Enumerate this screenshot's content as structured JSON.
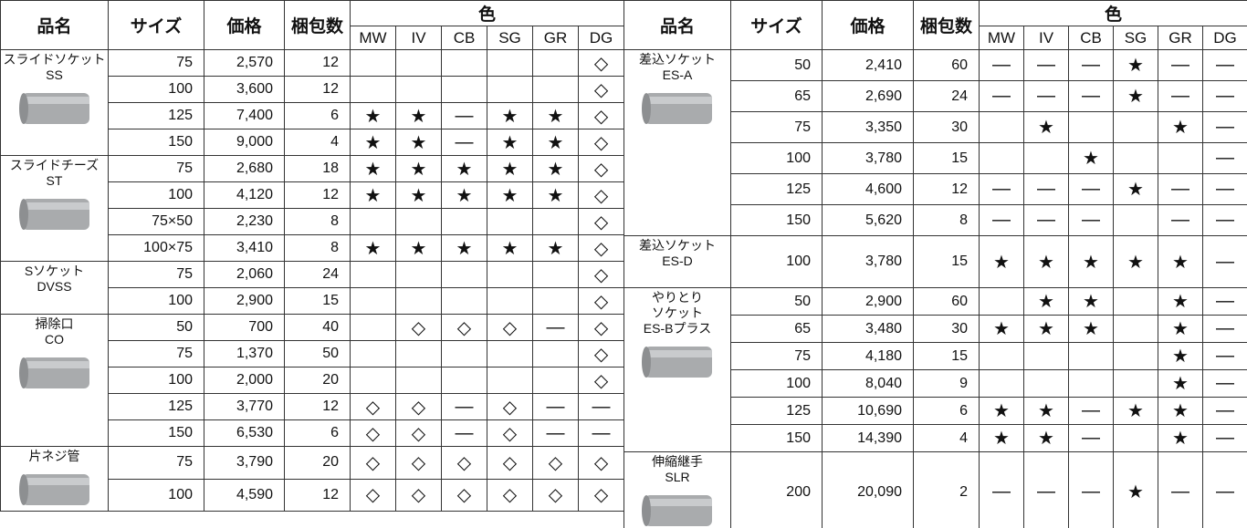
{
  "left_table": {
    "headers": {
      "name": "品名",
      "size": "サイズ",
      "price": "価格",
      "qty": "梱包数",
      "color": "色",
      "colors": [
        "MW",
        "IV",
        "CB",
        "SG",
        "GR",
        "DG"
      ]
    },
    "groups": [
      {
        "name_lines": [
          "スライドソケット",
          "SS"
        ],
        "rows": [
          {
            "size": "75",
            "price": "2,570",
            "qty": "12",
            "colors": [
              null,
              null,
              null,
              null,
              null,
              "◇"
            ]
          },
          {
            "size": "100",
            "price": "3,600",
            "qty": "12",
            "colors": [
              null,
              null,
              null,
              null,
              null,
              "◇"
            ]
          },
          {
            "size": "125",
            "price": "7,400",
            "qty": "6",
            "colors": [
              "★",
              "★",
              "—",
              "★",
              "★",
              "◇"
            ]
          },
          {
            "size": "150",
            "price": "9,000",
            "qty": "4",
            "colors": [
              "★",
              "★",
              "—",
              "★",
              "★",
              "◇"
            ]
          }
        ]
      },
      {
        "name_lines": [
          "スライドチーズ",
          "ST"
        ],
        "rows": [
          {
            "size": "75",
            "price": "2,680",
            "qty": "18",
            "colors": [
              "★",
              "★",
              "★",
              "★",
              "★",
              "◇"
            ]
          },
          {
            "size": "100",
            "price": "4,120",
            "qty": "12",
            "colors": [
              "★",
              "★",
              "★",
              "★",
              "★",
              "◇"
            ]
          },
          {
            "size": "75×50",
            "price": "2,230",
            "qty": "8",
            "colors": [
              null,
              null,
              null,
              null,
              null,
              "◇"
            ]
          },
          {
            "size": "100×75",
            "price": "3,410",
            "qty": "8",
            "colors": [
              "★",
              "★",
              "★",
              "★",
              "★",
              "◇"
            ]
          }
        ]
      },
      {
        "name_lines": [
          "Sソケット",
          "DVSS"
        ],
        "rows": [
          {
            "size": "75",
            "price": "2,060",
            "qty": "24",
            "colors": [
              null,
              null,
              null,
              null,
              null,
              "◇"
            ]
          },
          {
            "size": "100",
            "price": "2,900",
            "qty": "15",
            "colors": [
              null,
              null,
              null,
              null,
              null,
              "◇"
            ]
          }
        ]
      },
      {
        "name_lines": [
          "掃除口",
          "CO"
        ],
        "rows": [
          {
            "size": "50",
            "price": "700",
            "qty": "40",
            "colors": [
              null,
              "◇",
              "◇",
              "◇",
              "—",
              "◇"
            ]
          },
          {
            "size": "75",
            "price": "1,370",
            "qty": "50",
            "colors": [
              null,
              null,
              null,
              null,
              null,
              "◇"
            ]
          },
          {
            "size": "100",
            "price": "2,000",
            "qty": "20",
            "colors": [
              null,
              null,
              null,
              null,
              null,
              "◇"
            ]
          },
          {
            "size": "125",
            "price": "3,770",
            "qty": "12",
            "colors": [
              "◇",
              "◇",
              "—",
              "◇",
              "—",
              "—"
            ]
          },
          {
            "size": "150",
            "price": "6,530",
            "qty": "6",
            "colors": [
              "◇",
              "◇",
              "—",
              "◇",
              "—",
              "—"
            ]
          }
        ]
      },
      {
        "name_lines": [
          "片ネジ管"
        ],
        "rows": [
          {
            "size": "75",
            "price": "3,790",
            "qty": "20",
            "colors": [
              "◇",
              "◇",
              "◇",
              "◇",
              "◇",
              "◇"
            ]
          },
          {
            "size": "100",
            "price": "4,590",
            "qty": "12",
            "colors": [
              "◇",
              "◇",
              "◇",
              "◇",
              "◇",
              "◇"
            ]
          }
        ]
      }
    ]
  },
  "right_table": {
    "headers": {
      "name": "品名",
      "size": "サイズ",
      "price": "価格",
      "qty": "梱包数",
      "color": "色",
      "colors": [
        "MW",
        "IV",
        "CB",
        "SG",
        "GR",
        "DG"
      ]
    },
    "groups": [
      {
        "name_lines": [
          "差込ソケット",
          "ES-A"
        ],
        "rows": [
          {
            "size": "50",
            "price": "2,410",
            "qty": "60",
            "colors": [
              "—",
              "—",
              "—",
              "★",
              "—",
              "—"
            ]
          },
          {
            "size": "65",
            "price": "2,690",
            "qty": "24",
            "colors": [
              "—",
              "—",
              "—",
              "★",
              "—",
              "—"
            ]
          },
          {
            "size": "75",
            "price": "3,350",
            "qty": "30",
            "colors": [
              null,
              "★",
              null,
              null,
              "★",
              "—"
            ]
          },
          {
            "size": "100",
            "price": "3,780",
            "qty": "15",
            "colors": [
              null,
              null,
              "★",
              null,
              null,
              "—"
            ]
          },
          {
            "size": "125",
            "price": "4,600",
            "qty": "12",
            "colors": [
              "—",
              "—",
              "—",
              "★",
              "—",
              "—"
            ]
          },
          {
            "size": "150",
            "price": "5,620",
            "qty": "8",
            "colors": [
              "—",
              "—",
              "—",
              null,
              "—",
              "—"
            ]
          }
        ]
      },
      {
        "name_lines": [
          "差込ソケット",
          "ES-D"
        ],
        "rows": [
          {
            "size": "100",
            "price": "3,780",
            "qty": "15",
            "colors": [
              "★",
              "★",
              "★",
              "★",
              "★",
              "—"
            ]
          }
        ]
      },
      {
        "name_lines": [
          "やりとり",
          "ソケット",
          "ES-Bプラス"
        ],
        "rows": [
          {
            "size": "50",
            "price": "2,900",
            "qty": "60",
            "colors": [
              null,
              "★",
              "★",
              null,
              "★",
              "—"
            ]
          },
          {
            "size": "65",
            "price": "3,480",
            "qty": "30",
            "colors": [
              "★",
              "★",
              "★",
              null,
              "★",
              "—"
            ]
          },
          {
            "size": "75",
            "price": "4,180",
            "qty": "15",
            "colors": [
              null,
              null,
              null,
              null,
              "★",
              "—"
            ]
          },
          {
            "size": "100",
            "price": "8,040",
            "qty": "9",
            "colors": [
              null,
              null,
              null,
              null,
              "★",
              "—"
            ]
          },
          {
            "size": "125",
            "price": "10,690",
            "qty": "6",
            "colors": [
              "★",
              "★",
              "—",
              "★",
              "★",
              "—"
            ]
          },
          {
            "size": "150",
            "price": "14,390",
            "qty": "4",
            "colors": [
              "★",
              "★",
              "—",
              null,
              "★",
              "—"
            ]
          }
        ]
      },
      {
        "name_lines": [
          "伸縮継手",
          "SLR"
        ],
        "rows": [
          {
            "size": "200",
            "price": "20,090",
            "qty": "2",
            "colors": [
              "—",
              "—",
              "—",
              "★",
              "—",
              "—"
            ]
          }
        ]
      }
    ]
  }
}
